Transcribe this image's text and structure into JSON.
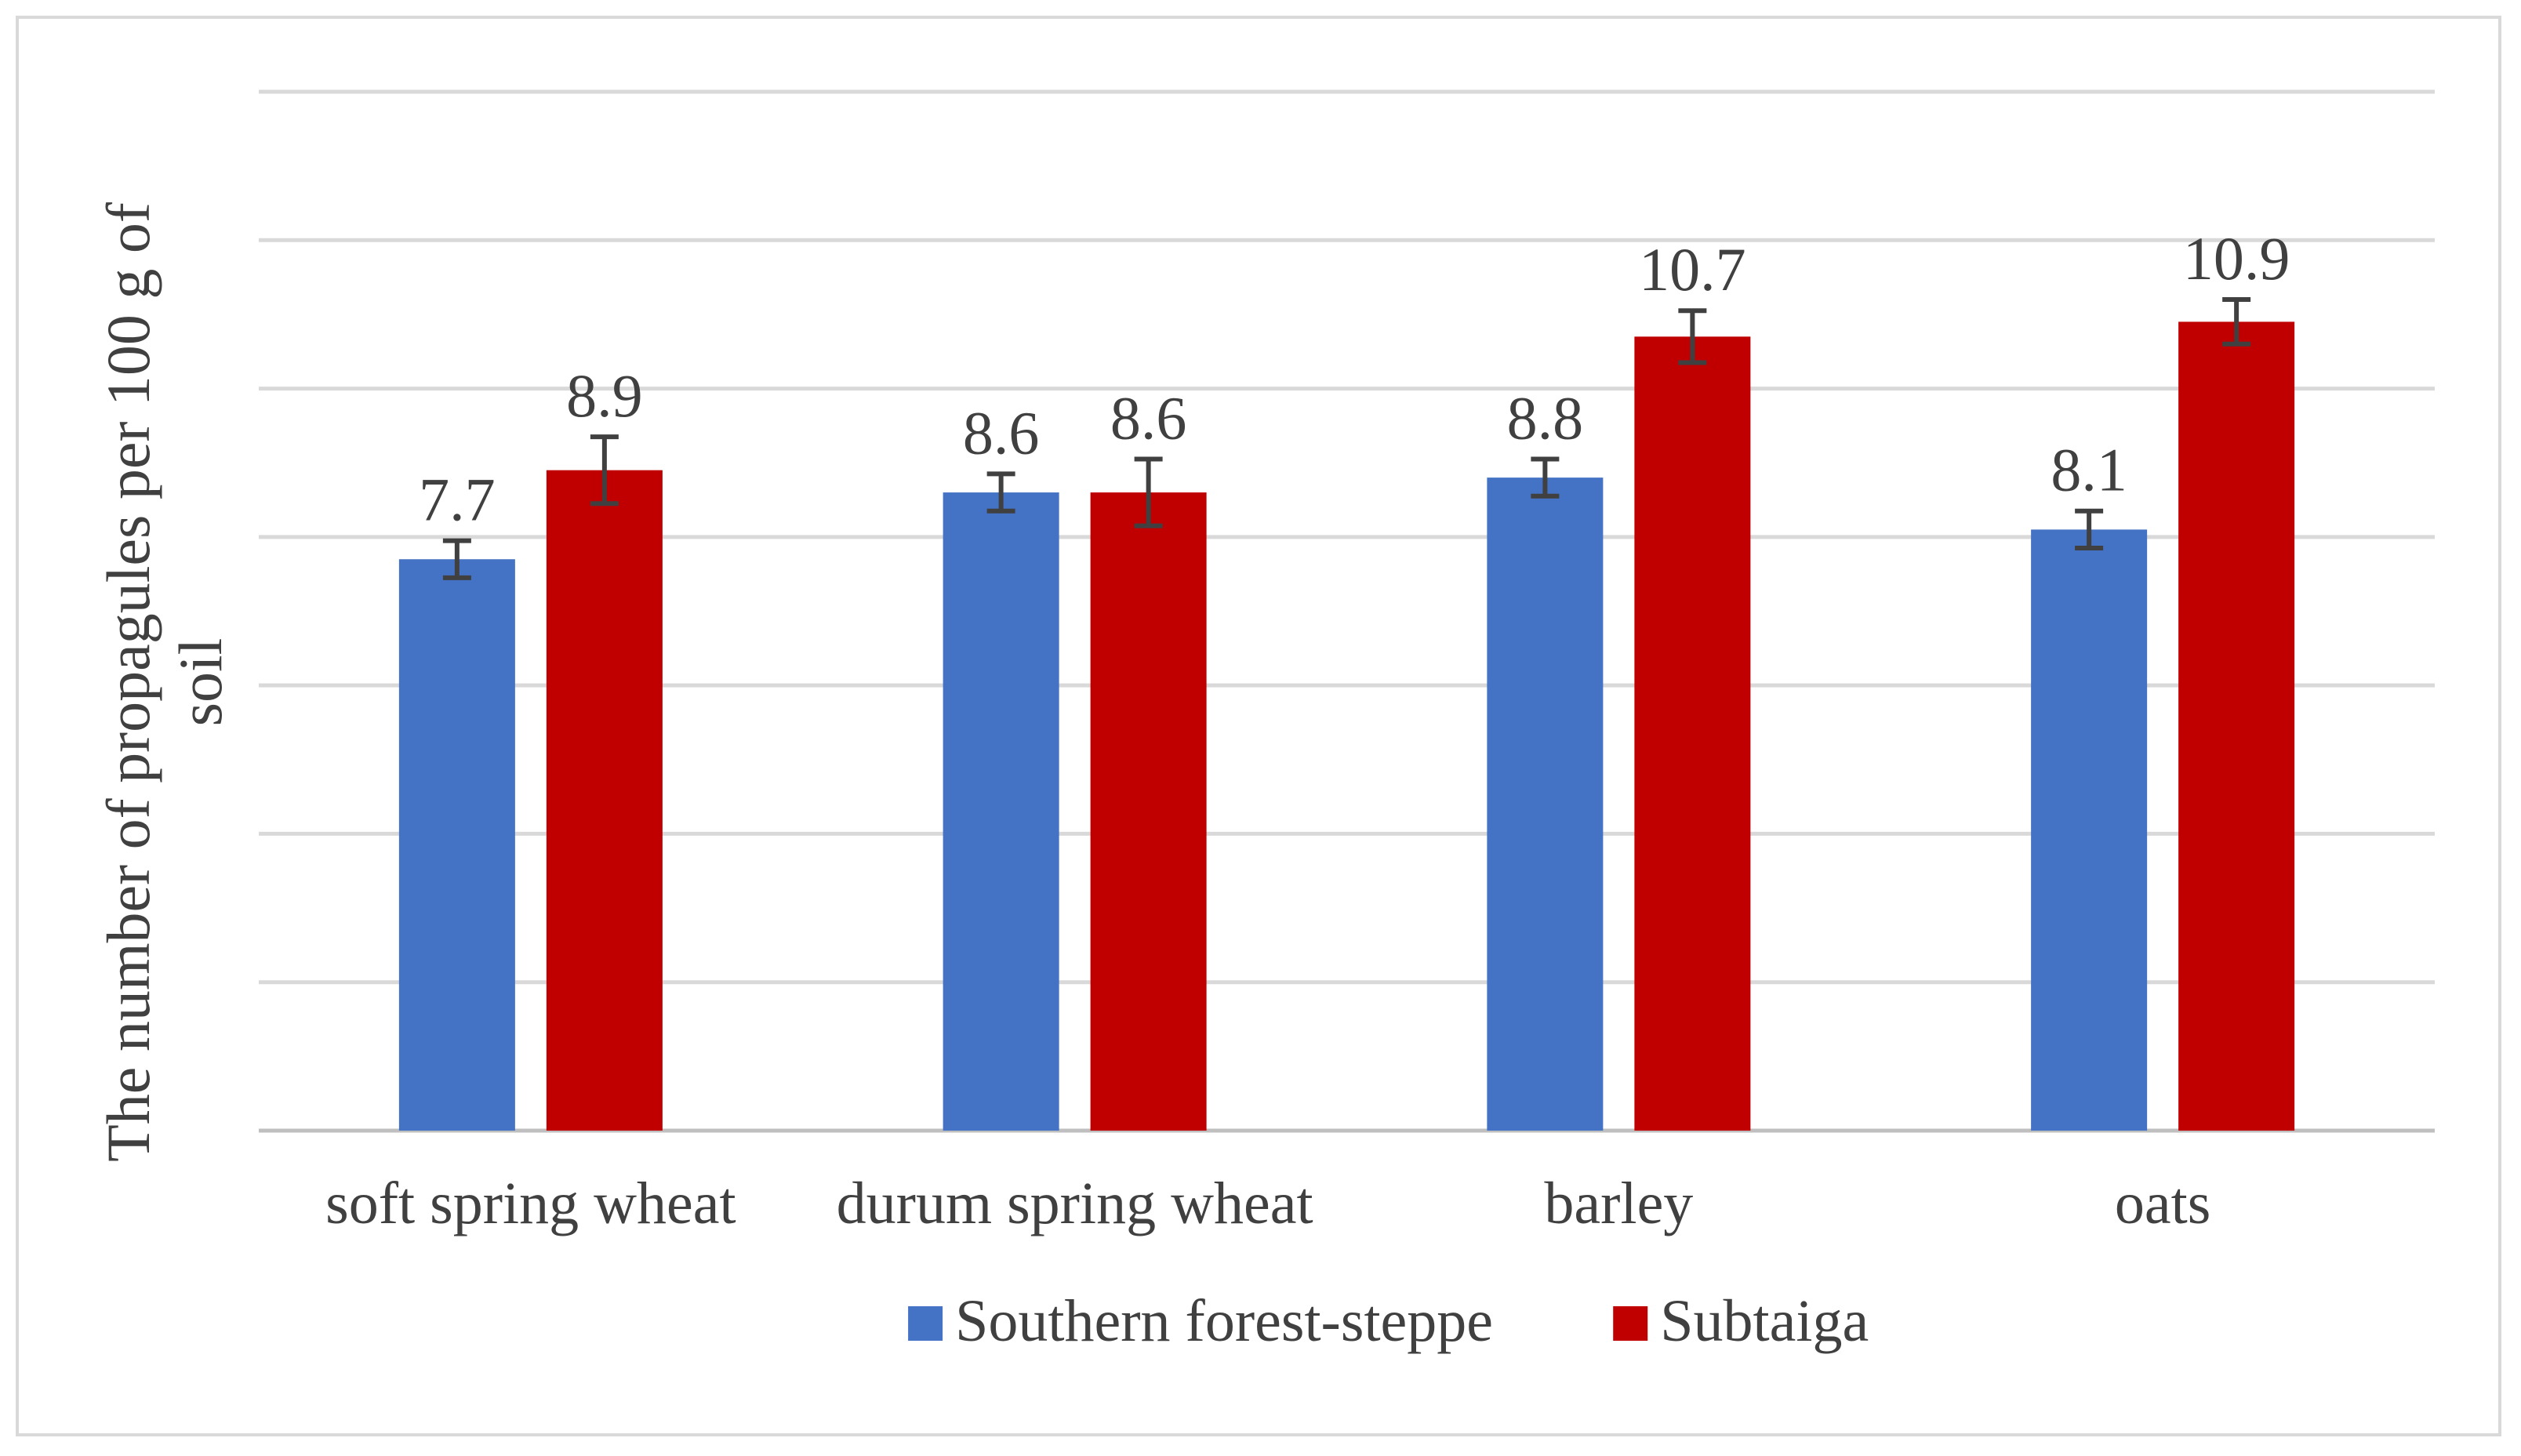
{
  "chart_data": {
    "type": "bar",
    "title": "",
    "xlabel": "",
    "ylabel": "The number of propagules per 100 g of soil",
    "ylabel_lines": [
      "The number of propagules per 100 g of",
      "soil"
    ],
    "categories": [
      "soft spring wheat",
      "durum spring wheat",
      "barley",
      "oats"
    ],
    "series": [
      {
        "name": "Southern forest-steppe",
        "color": "#4472C4",
        "values": [
          7.7,
          8.6,
          8.8,
          8.1
        ],
        "labels": [
          "7.7",
          "8.6",
          "8.8",
          "8.1"
        ],
        "error": [
          0.25,
          0.25,
          0.25,
          0.25
        ]
      },
      {
        "name": "Subtaiga",
        "color": "#C00000",
        "values": [
          8.9,
          8.6,
          10.7,
          10.9
        ],
        "labels": [
          "8.9",
          "8.6",
          "10.7",
          "10.9"
        ],
        "error": [
          0.45,
          0.45,
          0.35,
          0.3
        ]
      }
    ],
    "ylim": [
      0,
      14
    ],
    "grid": true,
    "gridline_step": 2,
    "legend": "bottom-center",
    "colors": {
      "grid": "#d9d9d9",
      "text": "#404040",
      "axis": "#bfbfbf",
      "errorbar": "#404040"
    }
  }
}
